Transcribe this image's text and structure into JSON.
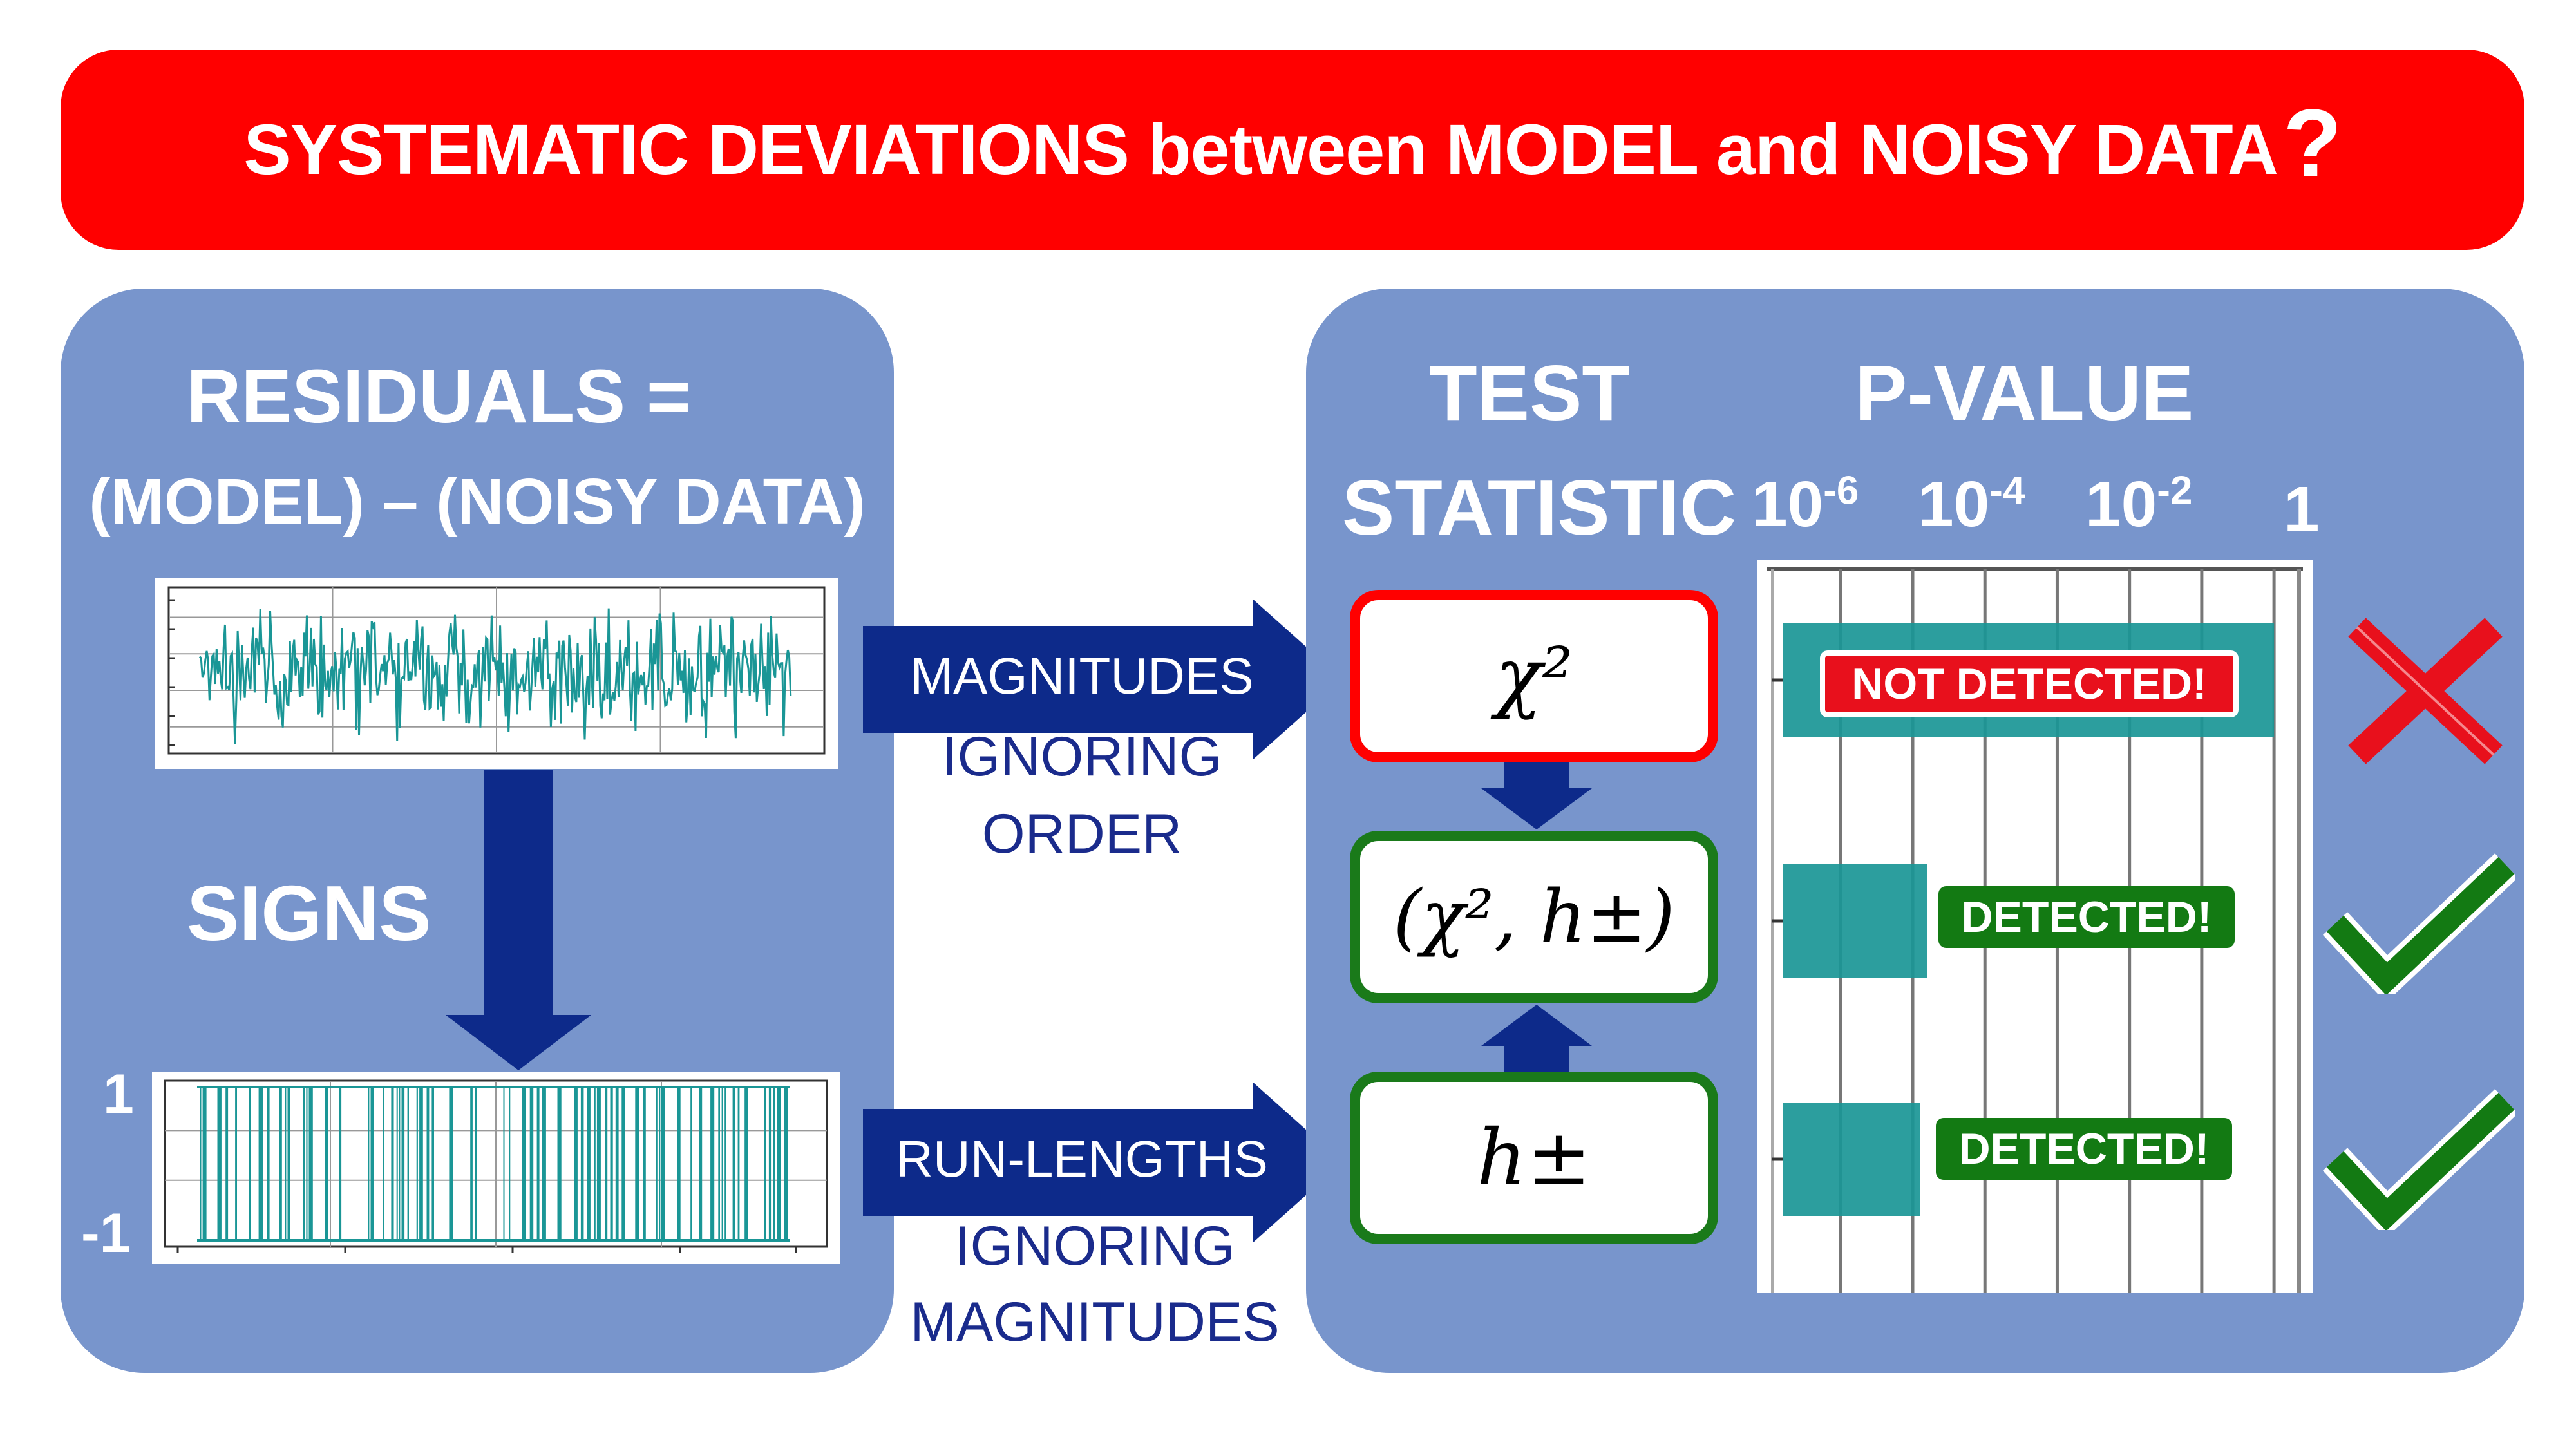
{
  "banner": {
    "title": "SYSTEMATIC DEVIATIONS between MODEL and NOISY DATA",
    "question_mark": "?"
  },
  "left_panel": {
    "title_line1": "RESIDUALS =",
    "title_line2": "(MODEL) – (NOISY DATA)",
    "signs_label": "SIGNS",
    "sign_axis_top": "1",
    "sign_axis_bottom": "-1"
  },
  "arrows": {
    "top_label": "MAGNITUDES",
    "top_caption_line1": "IGNORING",
    "top_caption_line2": "ORDER",
    "bottom_label": "RUN-LENGTHS",
    "bottom_caption_line1": "IGNORING",
    "bottom_caption_line2": "MAGNITUDES"
  },
  "right_panel": {
    "test_line1": "TEST",
    "test_line2": "STATISTIC",
    "pvalue_title": "P-VALUE",
    "ticks": [
      {
        "base": "10",
        "exp": "-6"
      },
      {
        "base": "10",
        "exp": "-4"
      },
      {
        "base": "10",
        "exp": "-2"
      },
      {
        "base": "1",
        "exp": ""
      }
    ]
  },
  "rows": [
    {
      "statistic": "χ²",
      "border_color": "#ff0000",
      "result": "NOT DETECTED!",
      "badge_color": "#e8101c",
      "log10_p": 0,
      "mark": "cross-icon"
    },
    {
      "statistic": "(χ², h±)",
      "border_color": "#1a7a1a",
      "result": "DETECTED!",
      "badge_color": "#137a13",
      "log10_p": -4.8,
      "mark": "check-icon"
    },
    {
      "statistic": "h±",
      "border_color": "#1a7a1a",
      "result": "DETECTED!",
      "badge_color": "#137a13",
      "log10_p": -4.9,
      "mark": "check-icon"
    }
  ],
  "colors": {
    "banner": "#ff0000",
    "panel": "#7895cc",
    "navy_arrow": "#0d2a8a",
    "teal": "#1a9696",
    "red_mark": "#e8101c",
    "green_mark": "#137a13"
  }
}
